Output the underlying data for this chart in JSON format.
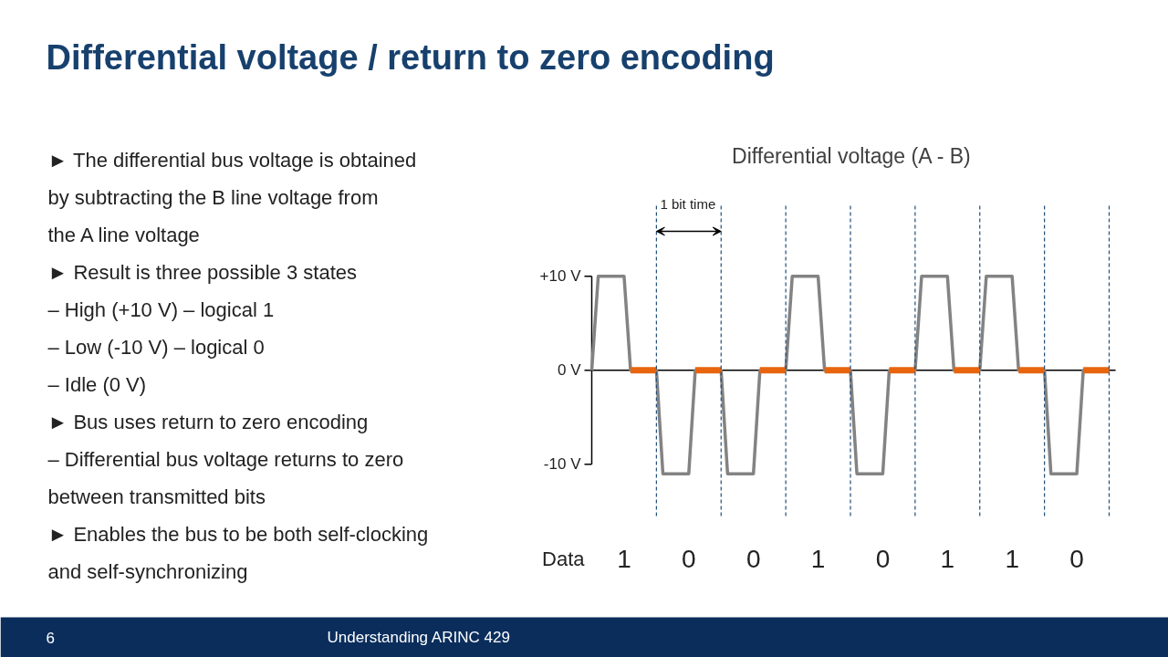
{
  "chart_data": {
    "type": "line",
    "title": "Differential voltage / return to zero encoding",
    "subtitle": "Differential voltage (A - B)",
    "xlabel": "Data",
    "annotations": [
      "1 bit time",
      "1",
      "0",
      "0",
      "1",
      "0",
      "1",
      "1",
      "0",
      "► The differential bus voltage is obtained by subtracting the B line voltage from the A line voltage",
      "► Result is three possible 3 states",
      "– High (+10 V) – logical 1",
      "– Low (-10 V) – logical 0",
      "– Idle (0 V)",
      "► Bus uses return to zero encoding",
      "– Differential bus voltage returns to zero between transmitted bits",
      "► Enables the bus to be both self-clocking and self-synchronizing",
      "6",
      "Understanding ARINC 429"
    ],
    "categories": [
      null,
      null,
      null,
      null,
      null,
      null,
      null,
      null,
      null,
      null,
      null,
      null,
      null,
      null,
      null,
      null,
      null,
      null,
      null,
      null,
      null,
      null,
      null,
      null,
      null,
      null,
      null,
      null,
      null,
      null,
      null,
      null,
      null,
      null,
      null,
      null,
      null,
      null,
      null,
      null,
      null,
      null,
      null,
      null,
      null,
      null,
      null,
      null,
      null,
      null,
      null,
      null,
      null,
      null,
      null,
      null,
      null,
      null,
      null,
      null,
      null,
      null,
      null,
      null,
      null,
      null,
      null,
      null,
      null,
      null,
      null,
      null,
      null,
      null,
      null,
      null,
      null,
      null,
      null,
      null,
      null
    ],
    "ylim": [
      -15.5,
      17.5
    ],
    "yticks": [
      {
        "value": 10,
        "label": "+10 V"
      },
      {
        "value": 0,
        "label": "0 V"
      },
      {
        "value": -10,
        "label": "-10 V"
      }
    ],
    "grid": "x",
    "marker": "none",
    "line_style": "solid",
    "series": [
      {
        "color": "#838383",
        "values": [
          0,
          10,
          10,
          10,
          10,
          10,
          0,
          0,
          0,
          0,
          0,
          -11,
          -11,
          -11,
          -11,
          -11,
          0,
          0,
          0,
          0,
          0,
          -11,
          -11,
          -11,
          -11,
          -11,
          0,
          0,
          0,
          0,
          0,
          10,
          10,
          10,
          10,
          10,
          0,
          0,
          0,
          0,
          0,
          -11,
          -11,
          -11,
          -11,
          -11,
          0,
          0,
          0,
          0,
          0,
          10,
          10,
          10,
          10,
          10,
          0,
          0,
          0,
          0,
          0,
          10,
          10,
          10,
          10,
          10,
          0,
          0,
          0,
          0,
          0,
          -11,
          -11,
          -11,
          -11,
          -11,
          0,
          0,
          0,
          0,
          0
        ]
      },
      {
        "color": "#e8650e",
        "values": [
          null,
          null,
          null,
          null,
          null,
          null,
          0,
          0,
          0,
          0,
          0,
          null,
          null,
          null,
          null,
          null,
          0,
          0,
          0,
          0,
          0,
          null,
          null,
          null,
          null,
          null,
          0,
          0,
          0,
          0,
          0,
          null,
          null,
          null,
          null,
          null,
          0,
          0,
          0,
          0,
          0,
          null,
          null,
          null,
          null,
          null,
          0,
          0,
          0,
          0,
          0,
          null,
          null,
          null,
          null,
          null,
          0,
          0,
          0,
          0,
          0,
          null,
          null,
          null,
          null,
          null,
          0,
          0,
          0,
          0,
          0,
          null,
          null,
          null,
          null,
          null,
          0,
          0,
          0,
          0,
          0
        ]
      }
    ],
    "ref_lines": [
      {
        "axis": "y",
        "value": 0,
        "color": "#000000",
        "line_style": "solid"
      }
    ]
  }
}
